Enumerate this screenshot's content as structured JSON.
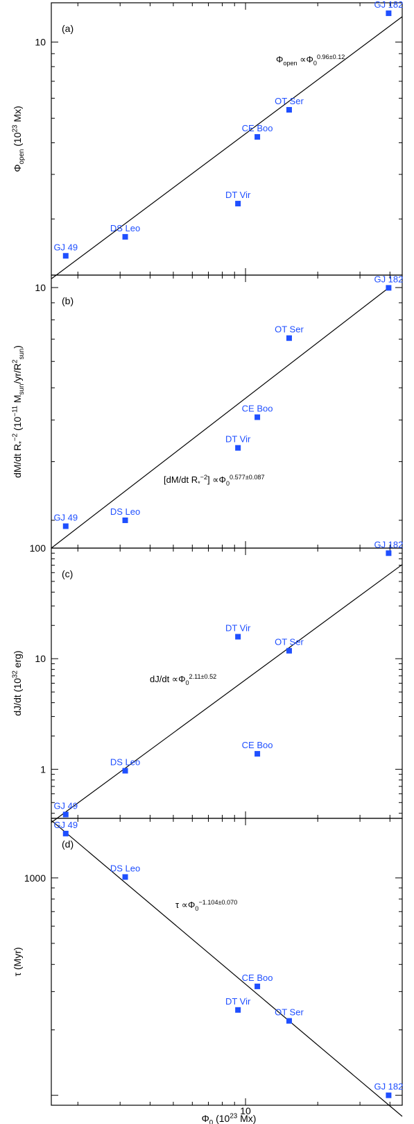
{
  "colors": {
    "marker": "#1f4fff",
    "label": "#1f4fff",
    "line": "#000000",
    "axis": "#000000"
  },
  "xlabel": {
    "main": "Φ",
    "sub": "0",
    "rest": " (10",
    "sup": "23",
    "tail": " Mx)"
  },
  "x_ticks": [
    "10"
  ],
  "chart_data": [
    {
      "type": "scatter",
      "panel": "(a)",
      "x_scale": "log",
      "y_scale": "log",
      "xlim": [
        1.55,
        45
      ],
      "ylim": [
        1.2,
        14.3
      ],
      "y_ticks": [
        "10"
      ],
      "ylabel": {
        "main": "Φ",
        "sub": "open",
        "rest": " (10",
        "sup": "23",
        "tail": " Mx)"
      },
      "x": [
        1.78,
        3.15,
        9.3,
        11.2,
        15.2,
        39.5
      ],
      "y": [
        1.43,
        1.7,
        2.3,
        4.22,
        5.4,
        13.0
      ],
      "point_labels": [
        "GJ 49",
        "DS Leo",
        "DT Vir",
        "CE Boo",
        "OT Ser",
        "GJ 182"
      ],
      "fit_line": {
        "x": [
          1.55,
          45
        ],
        "y": [
          1.16,
          12.6
        ]
      },
      "annotation": {
        "main": "Φ",
        "sub": "open",
        "mid": "  ∝Φ",
        "sub2": "0",
        "sup": "0.96±0.12"
      },
      "grid": false
    },
    {
      "type": "scatter",
      "panel": "(b)",
      "x_scale": "log",
      "y_scale": "log",
      "xlim": [
        1.55,
        45
      ],
      "ylim": [
        1.65,
        10.9
      ],
      "y_ticks": [
        "10"
      ],
      "ylabel": {
        "main": "dM/dt R",
        "sub": "*",
        "sup": "−2",
        "rest": " (10",
        "sup2": "−11",
        "tail": " M",
        "sub2": "sun",
        "tail2": "/yr/R",
        "sup3": "2",
        "sub3": "sun",
        "end": ")"
      },
      "x": [
        1.78,
        3.15,
        9.3,
        11.2,
        15.2,
        39.5
      ],
      "y": [
        1.92,
        2.0,
        3.3,
        4.08,
        7.05,
        9.98
      ],
      "point_labels": [
        "GJ 49",
        "DS Leo",
        "DT Vir",
        "CE Boo",
        "OT Ser",
        "GJ 182"
      ],
      "fit_line": {
        "x": [
          1.55,
          39.5
        ],
        "y": [
          1.65,
          9.98
        ]
      },
      "annotation": {
        "main": "[dM/dt R",
        "sub": "*",
        "sup": "−2",
        "mid": "]  ∝Φ",
        "sub2": "0",
        "sup2": "0.577±0.087"
      },
      "grid": false
    },
    {
      "type": "scatter",
      "panel": "(c)",
      "x_scale": "log",
      "y_scale": "log",
      "xlim": [
        1.55,
        45
      ],
      "ylim": [
        0.36,
        100
      ],
      "y_ticks": [
        "1",
        "10",
        "100"
      ],
      "ylabel": {
        "main": "dJ/dt (10",
        "sup": "32",
        "tail": " erg)"
      },
      "x": [
        1.78,
        3.15,
        9.3,
        11.2,
        15.2,
        39.5
      ],
      "y": [
        0.39,
        0.97,
        15.8,
        1.38,
        11.8,
        90
      ],
      "point_labels": [
        "GJ 49",
        "DS Leo",
        "DT Vir",
        "CE Boo",
        "OT Ser",
        "GJ 182"
      ],
      "fit_line": {
        "x": [
          1.55,
          45
        ],
        "y": [
          0.33,
          71.0
        ]
      },
      "annotation": {
        "main": "dJ/dt  ∝Φ",
        "sub": "0",
        "sup": "2.11±0.52"
      },
      "grid": false
    },
    {
      "type": "scatter",
      "panel": "(d)",
      "x_scale": "log",
      "y_scale": "log",
      "xlim": [
        1.55,
        45
      ],
      "ylim": [
        90,
        1880
      ],
      "y_ticks": [
        "1000"
      ],
      "ylabel": {
        "main": "τ",
        "tail": " (Myr)"
      },
      "x": [
        1.78,
        3.15,
        9.3,
        11.2,
        15.2,
        39.5
      ],
      "y": [
        1600,
        1010,
        247,
        317,
        220,
        100
      ],
      "point_labels": [
        "GJ 49",
        "DS Leo",
        "DT Vir",
        "CE Boo",
        "OT Ser",
        "GJ 182"
      ],
      "fit_line": {
        "x": [
          1.55,
          45
        ],
        "y": [
          1840,
          80
        ]
      },
      "annotation": {
        "main": "τ ∝Φ",
        "sub": "0",
        "sup": "−1.104±0.070"
      },
      "grid": false
    }
  ]
}
